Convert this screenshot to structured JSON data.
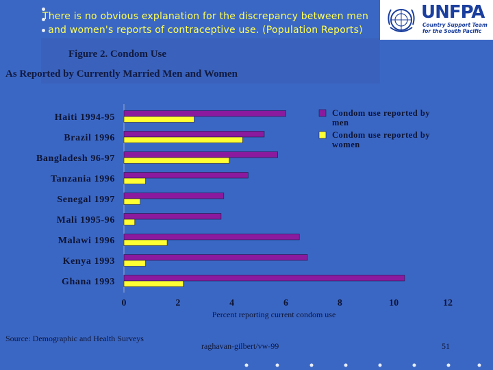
{
  "slide": {
    "headline": "There is no obvious explanation for the discrepancy between men and women's reports of contraceptive use. (Population Reports)",
    "headline_color": "#ffff55",
    "background_color": "#3b67c4",
    "source": "Source: Demographic and Health Surveys",
    "footer": "raghavan-gilbert/vw-99",
    "page_number": "51"
  },
  "logo": {
    "wordmark": "UNFPA",
    "tagline": "Country Support Team for the South Pacific",
    "icon": "un-emblem-icon"
  },
  "chart_data": {
    "type": "bar",
    "orientation": "horizontal",
    "title": "Figure 2. Condom Use",
    "subtitle": "As Reported by Currently Married Men and Women",
    "xlabel": "Percent reporting current condom use",
    "ylabel": "",
    "xlim": [
      0,
      12
    ],
    "xticks": [
      0,
      2,
      4,
      6,
      8,
      10,
      12
    ],
    "grid": false,
    "legend_position": "top-right",
    "categories": [
      "Haiti 1994-95",
      "Brazil 1996",
      "Bangladesh 96-97",
      "Tanzania 1996",
      "Senegal 1997",
      "Mali 1995-96",
      "Malawi 1996",
      "Kenya 1993",
      "Ghana 1993"
    ],
    "series": [
      {
        "name": "Condom use reported by men",
        "color": "#8b1a9e",
        "values": [
          6.0,
          5.2,
          5.7,
          4.6,
          3.7,
          3.6,
          6.5,
          6.8,
          10.4
        ]
      },
      {
        "name": "Condom use reported by women",
        "color": "#ffff33",
        "values": [
          2.6,
          4.4,
          3.9,
          0.8,
          0.6,
          0.4,
          1.6,
          0.8,
          2.2
        ]
      }
    ]
  }
}
